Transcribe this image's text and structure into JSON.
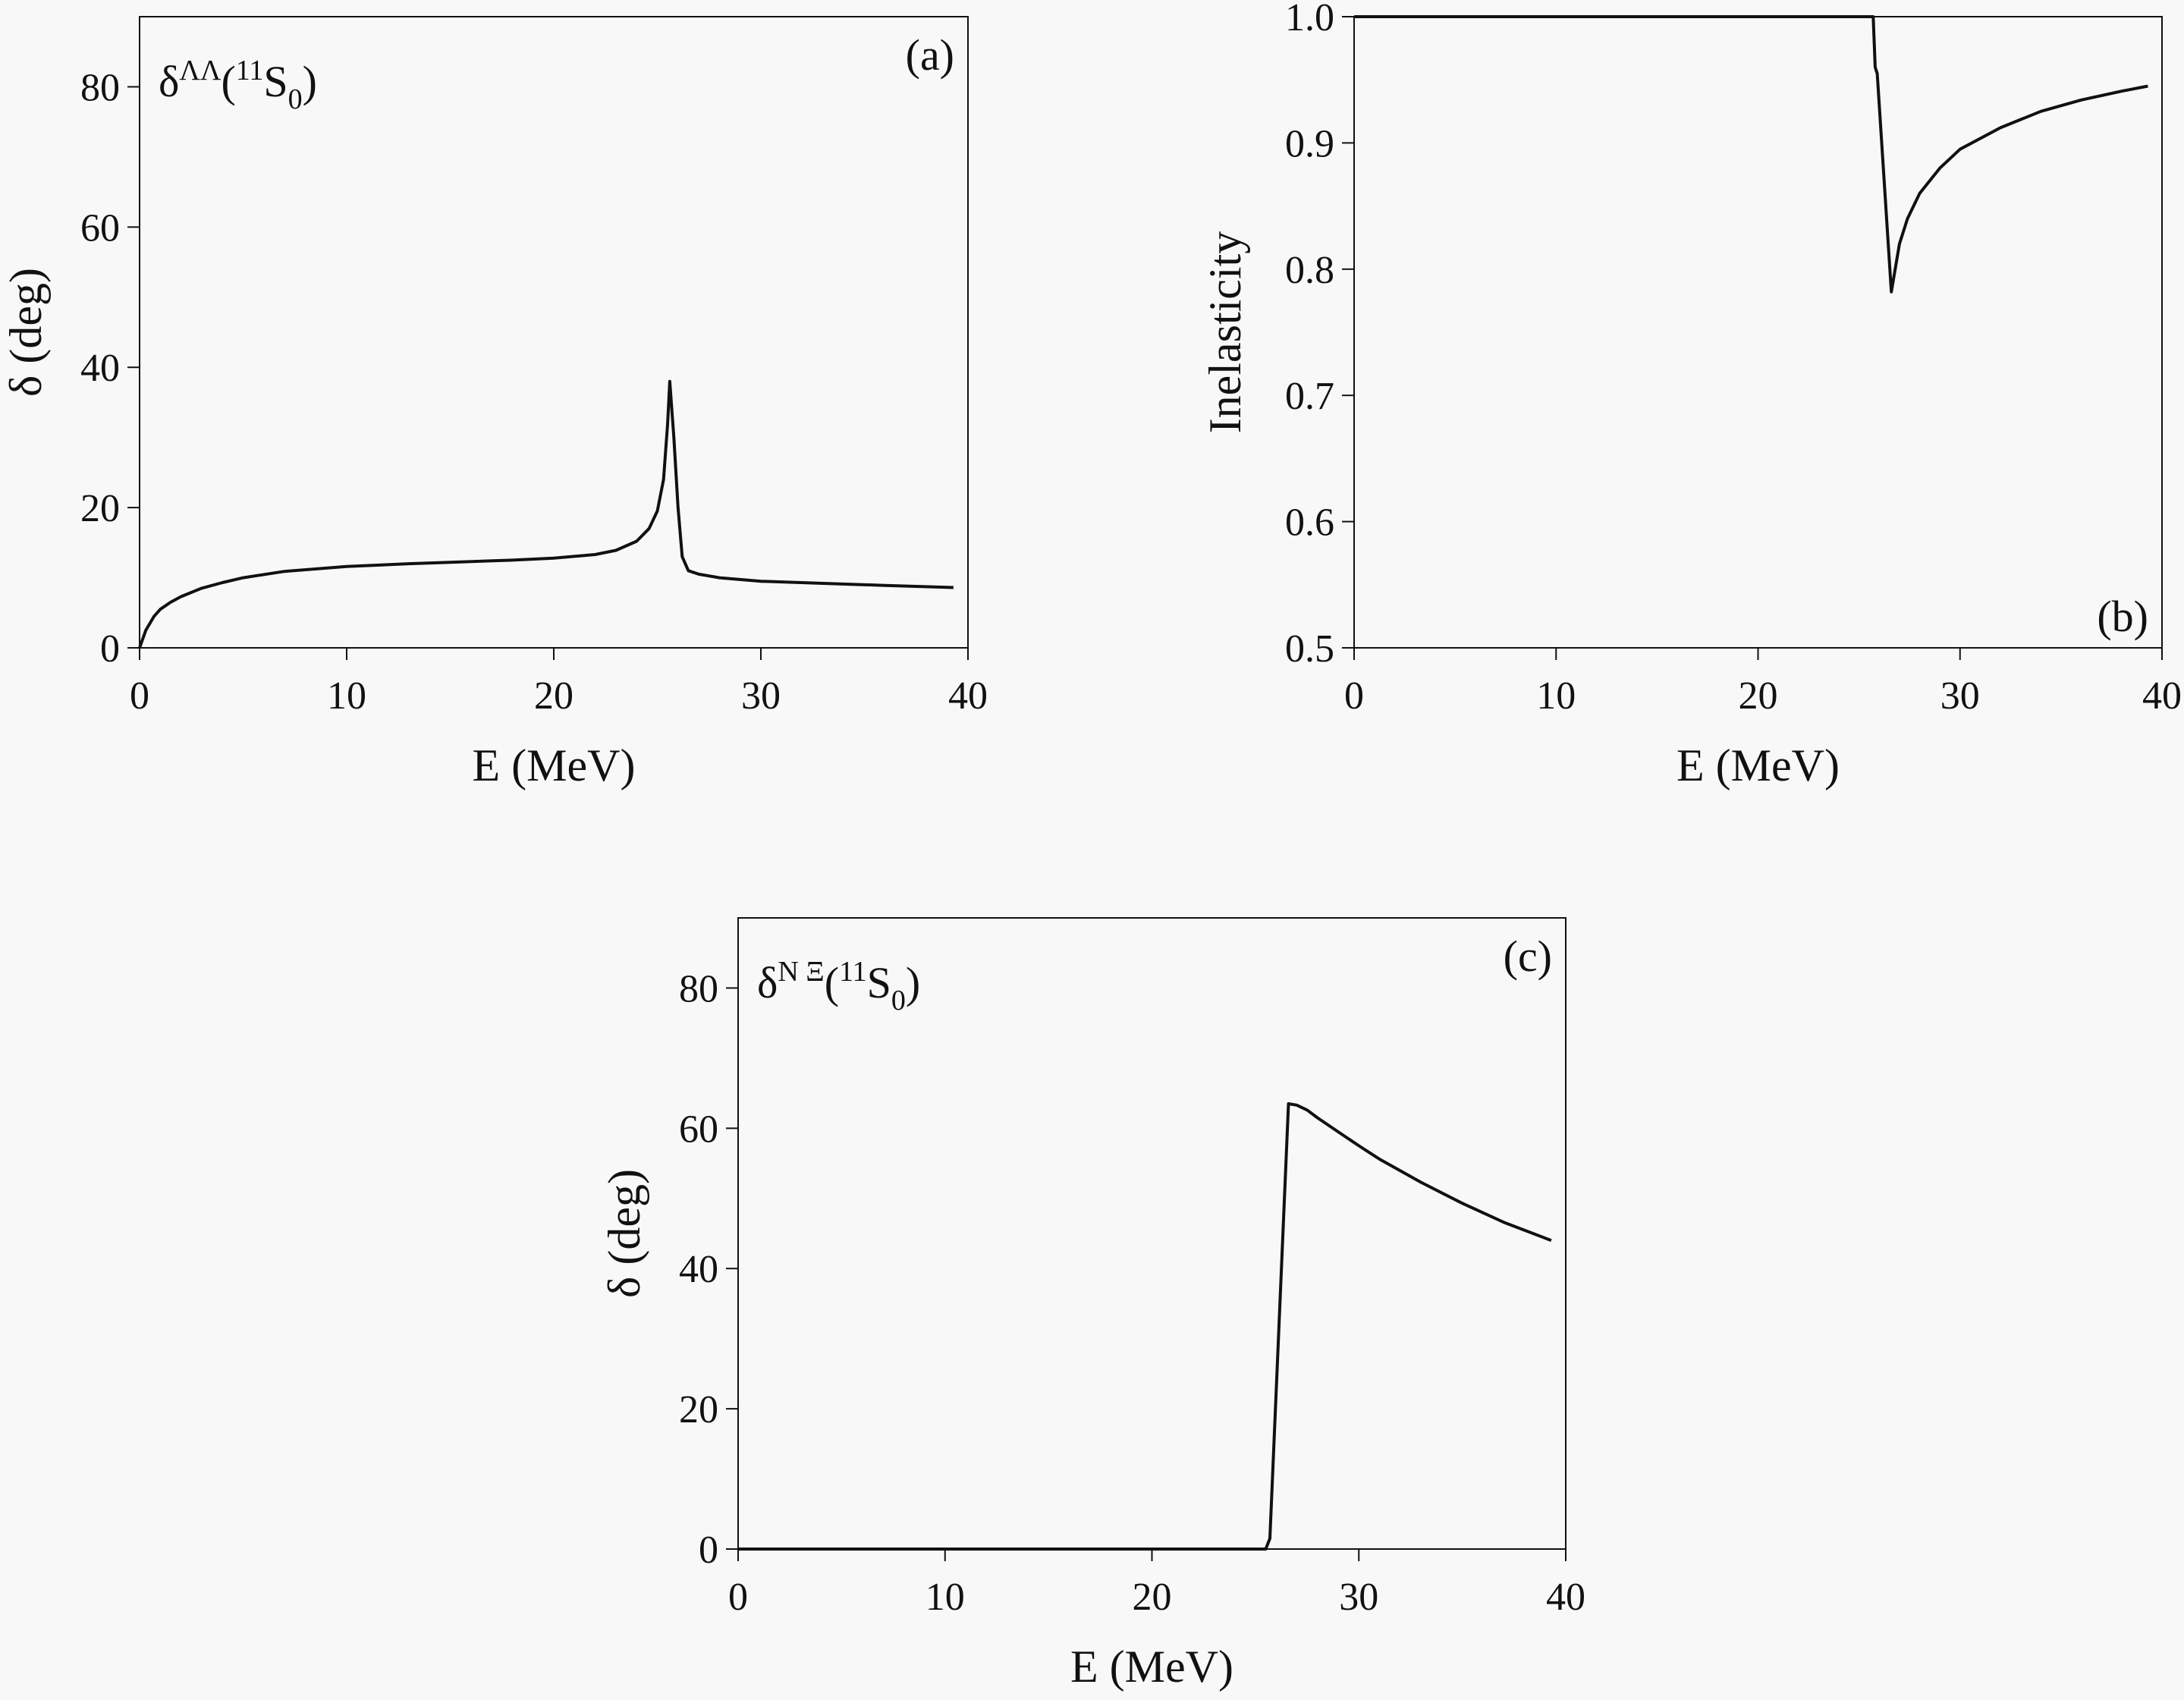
{
  "chart_data": [
    {
      "type": "line",
      "panel": "(a)",
      "annotation": {
        "base": "δ",
        "sup": "ΛΛ",
        "open": "(",
        "pre_sup": "11",
        "letter": "S",
        "sub": "0",
        "close": ")"
      },
      "xlabel": "E (MeV)",
      "ylabel": "δ (deg)",
      "xlim": [
        0,
        40
      ],
      "ylim": [
        0,
        90
      ],
      "xticks": [
        0,
        10,
        20,
        30,
        40
      ],
      "yticks": [
        0,
        20,
        40,
        60,
        80
      ],
      "series": [
        {
          "name": "delta_LambdaLambda",
          "x": [
            0,
            0.3,
            0.7,
            1,
            1.5,
            2,
            3,
            4,
            5,
            7,
            10,
            13,
            15,
            18,
            20,
            22,
            23,
            24,
            24.6,
            25,
            25.3,
            25.5,
            25.6,
            25.8,
            26,
            26.2,
            26.5,
            27,
            28,
            30,
            33,
            36,
            39.3
          ],
          "y": [
            0,
            2.5,
            4.5,
            5.5,
            6.5,
            7.3,
            8.5,
            9.3,
            10,
            10.9,
            11.6,
            12,
            12.2,
            12.5,
            12.8,
            13.3,
            13.9,
            15.2,
            17,
            19.5,
            24,
            32,
            38,
            30,
            20,
            13,
            11,
            10.5,
            10,
            9.5,
            9.2,
            8.9,
            8.6
          ]
        }
      ]
    },
    {
      "type": "line",
      "panel": "(b)",
      "xlabel": "E (MeV)",
      "ylabel": "Inelasticity",
      "xlim": [
        0,
        40
      ],
      "ylim": [
        0.5,
        1.0
      ],
      "xticks": [
        0,
        10,
        20,
        30,
        40
      ],
      "yticks": [
        "0.5",
        "0.6",
        "0.7",
        "0.8",
        "0.9",
        "1.0"
      ],
      "series": [
        {
          "name": "inelasticity",
          "x": [
            0,
            10,
            20,
            25.7,
            25.8,
            25.9,
            26.6,
            27.0,
            27.4,
            28,
            29,
            30,
            32,
            34,
            36,
            38,
            39.3
          ],
          "y": [
            1,
            1,
            1,
            1,
            0.96,
            0.955,
            0.782,
            0.82,
            0.84,
            0.86,
            0.88,
            0.895,
            0.912,
            0.925,
            0.934,
            0.941,
            0.945
          ]
        }
      ]
    },
    {
      "type": "line",
      "panel": "(c)",
      "annotation": {
        "base": "δ",
        "sup": "N Ξ",
        "open": "(",
        "pre_sup": "11",
        "letter": "S",
        "sub": "0",
        "close": ")"
      },
      "xlabel": "E (MeV)",
      "ylabel": "δ (deg)",
      "xlim": [
        0,
        40
      ],
      "ylim": [
        0,
        90
      ],
      "xticks": [
        0,
        10,
        20,
        30,
        40
      ],
      "yticks": [
        0,
        20,
        40,
        60,
        80
      ],
      "series": [
        {
          "name": "delta_NXi",
          "x": [
            0,
            10,
            20,
            25.5,
            25.7,
            26.6,
            27,
            27.5,
            28,
            29,
            30,
            31,
            33,
            35,
            37,
            39.3
          ],
          "y": [
            0,
            0,
            0,
            0,
            1.5,
            63.5,
            63.3,
            62.6,
            61.5,
            59.5,
            57.5,
            55.6,
            52.3,
            49.3,
            46.6,
            44
          ]
        }
      ]
    }
  ]
}
